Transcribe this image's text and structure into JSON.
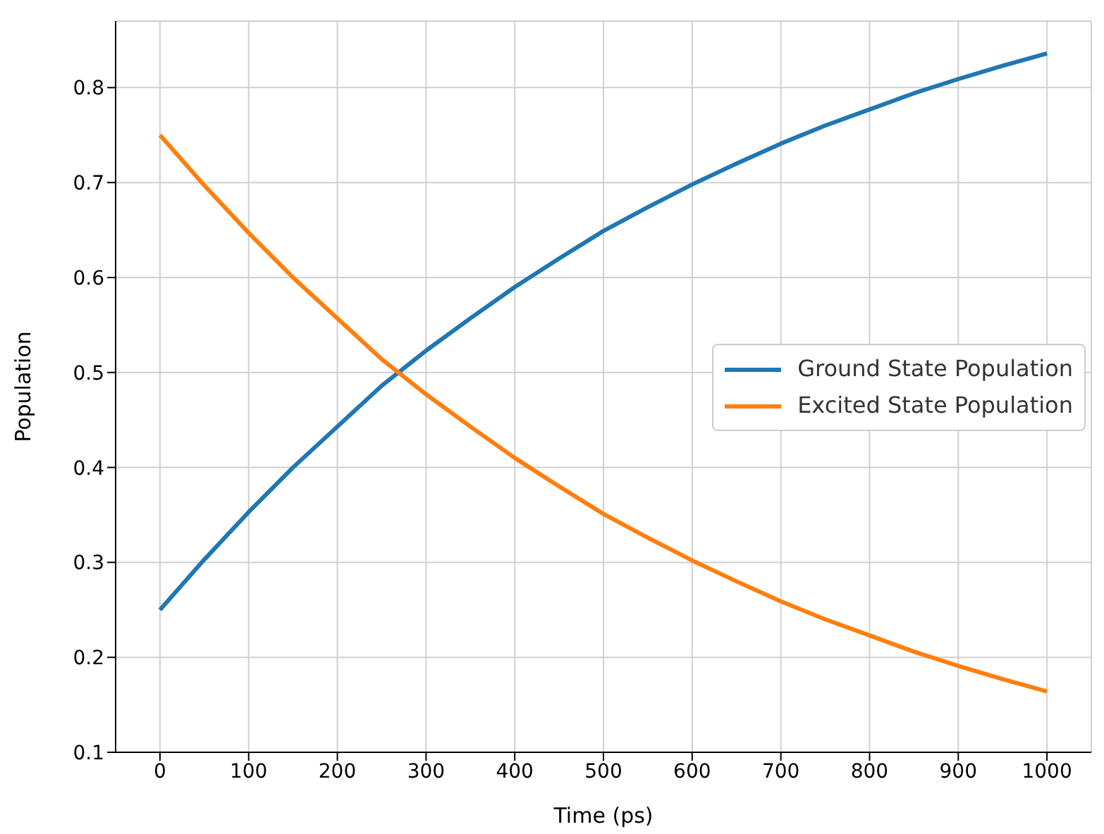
{
  "chart_data": {
    "type": "line",
    "xlabel": "Time (ps)",
    "ylabel": "Population",
    "x": [
      0,
      50,
      100,
      150,
      200,
      250,
      300,
      350,
      400,
      450,
      500,
      550,
      600,
      650,
      700,
      750,
      800,
      850,
      900,
      950,
      1000
    ],
    "series": [
      {
        "name": "Ground State Population",
        "color": "#1f77b4",
        "values": [
          0.25,
          0.303,
          0.353,
          0.4,
          0.443,
          0.486,
          0.523,
          0.557,
          0.59,
          0.62,
          0.649,
          0.674,
          0.698,
          0.72,
          0.741,
          0.76,
          0.777,
          0.794,
          0.809,
          0.823,
          0.836
        ]
      },
      {
        "name": "Excited State Population",
        "color": "#ff7f0e",
        "values": [
          0.75,
          0.697,
          0.647,
          0.6,
          0.557,
          0.514,
          0.477,
          0.443,
          0.41,
          0.38,
          0.351,
          0.326,
          0.302,
          0.28,
          0.259,
          0.24,
          0.223,
          0.206,
          0.191,
          0.177,
          0.164
        ]
      }
    ],
    "xlim": [
      -50,
      1050
    ],
    "xticks": [
      0,
      100,
      200,
      300,
      400,
      500,
      600,
      700,
      800,
      900,
      1000
    ],
    "ylim": [
      0.1,
      0.87
    ],
    "yticks": [
      0.1,
      0.2,
      0.3,
      0.4,
      0.5,
      0.6,
      0.7,
      0.8
    ],
    "grid": true,
    "legend": "right",
    "marker": "none",
    "line_style": "solid"
  }
}
